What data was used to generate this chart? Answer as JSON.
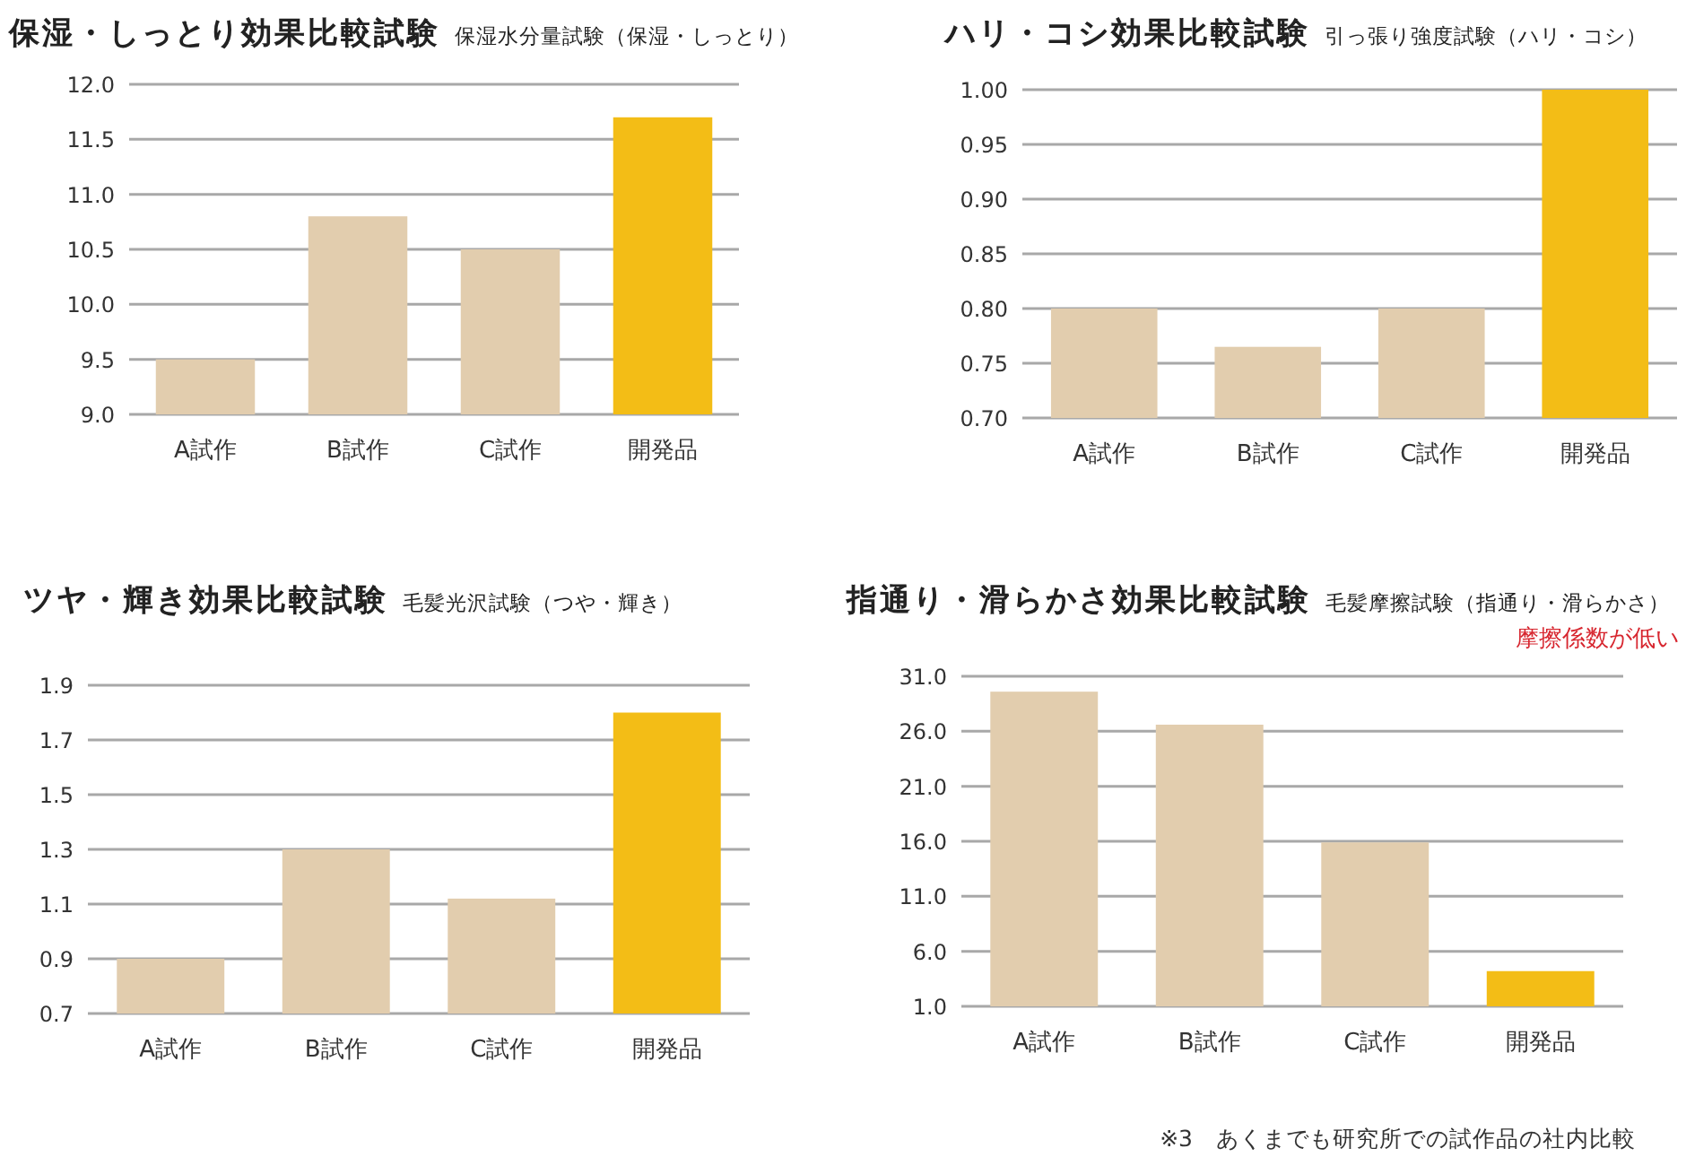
{
  "chart_data": [
    {
      "type": "bar",
      "title": "保湿・しっとり効果比較試験",
      "subtitle": "保湿水分量試験（保湿・しっとり）",
      "categories": [
        "A試作",
        "B試作",
        "C試作",
        "開発品"
      ],
      "values": [
        9.5,
        10.8,
        10.5,
        11.7
      ],
      "colors": [
        "#e2cdae",
        "#e2cdae",
        "#e2cdae",
        "#f3bd16"
      ],
      "ylim": [
        9.0,
        12.0
      ],
      "yticks": [
        {
          "value": 9.0,
          "label": "9.0"
        },
        {
          "value": 9.5,
          "label": "9.5"
        },
        {
          "value": 10.0,
          "label": "10.0"
        },
        {
          "value": 10.5,
          "label": "10.5"
        },
        {
          "value": 11.0,
          "label": "11.0"
        },
        {
          "value": 11.5,
          "label": "11.5"
        },
        {
          "value": 12.0,
          "label": "12.0"
        }
      ],
      "grid": "y"
    },
    {
      "type": "bar",
      "title": "ハリ・コシ効果比較試験",
      "subtitle": "引っ張り強度試験（ハリ・コシ）",
      "categories": [
        "A試作",
        "B試作",
        "C試作",
        "開発品"
      ],
      "values": [
        0.8,
        0.765,
        0.8,
        1.0
      ],
      "colors": [
        "#e2cdae",
        "#e2cdae",
        "#e2cdae",
        "#f3bd16"
      ],
      "ylim": [
        0.7,
        1.0
      ],
      "yticks": [
        {
          "value": 0.7,
          "label": "0.70"
        },
        {
          "value": 0.75,
          "label": "0.75"
        },
        {
          "value": 0.8,
          "label": "0.80"
        },
        {
          "value": 0.85,
          "label": "0.85"
        },
        {
          "value": 0.9,
          "label": "0.90"
        },
        {
          "value": 0.95,
          "label": "0.95"
        },
        {
          "value": 1.0,
          "label": "1.00"
        }
      ],
      "grid": "y"
    },
    {
      "type": "bar",
      "title": "ツヤ・輝き効果比較試験",
      "subtitle": "毛髪光沢試験（つや・輝き）",
      "categories": [
        "A試作",
        "B試作",
        "C試作",
        "開発品"
      ],
      "values": [
        0.9,
        1.3,
        1.12,
        1.8
      ],
      "colors": [
        "#e2cdae",
        "#e2cdae",
        "#e2cdae",
        "#f3bd16"
      ],
      "ylim": [
        0.7,
        1.9
      ],
      "yticks": [
        0.7,
        0.9,
        1.1,
        1.3,
        1.5,
        1.7,
        1.9
      ],
      "grid": "y"
    },
    {
      "type": "bar",
      "title": "指通り・滑らかさ効果比較試験",
      "subtitle": "毛髪摩擦試験（指通り・滑らかさ）",
      "annotations": [
        "摩擦係数が低い",
        "※3　あくまでも研究所での試作品の社内比較"
      ],
      "categories": [
        "A試作",
        "B試作",
        "C試作",
        "開発品"
      ],
      "values": [
        29.6,
        26.6,
        15.9,
        4.2
      ],
      "colors": [
        "#e2cdae",
        "#e2cdae",
        "#e2cdae",
        "#f3bd16"
      ],
      "ylim": [
        1.0,
        31.0
      ],
      "yticks": [
        {
          "value": 1.0,
          "label": "1.0"
        },
        {
          "value": 6.0,
          "label": "6.0"
        },
        {
          "value": 11.0,
          "label": "11.0"
        },
        {
          "value": 16.0,
          "label": "16.0"
        },
        {
          "value": 21.0,
          "label": "21.0"
        },
        {
          "value": 26.0,
          "label": "26.0"
        },
        {
          "value": 31.0,
          "label": "31.0"
        }
      ],
      "grid": "y"
    }
  ]
}
